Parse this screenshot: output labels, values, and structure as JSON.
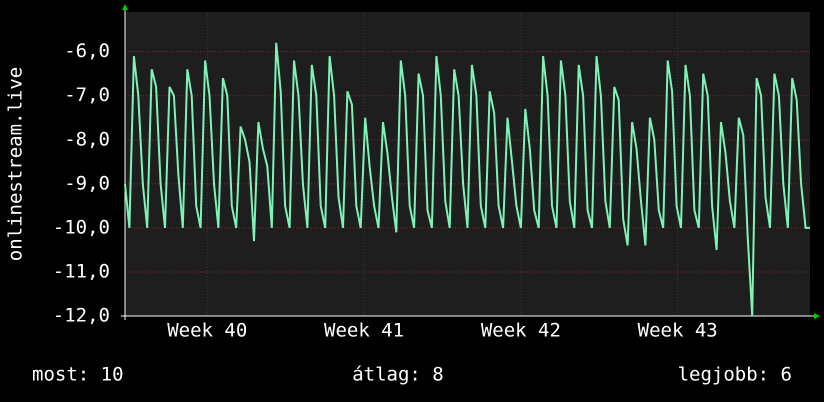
{
  "chart_data": {
    "type": "line",
    "y_label": "onlinestream.live",
    "x": [
      0,
      0.2,
      0.4,
      0.6,
      0.8,
      1,
      1.2,
      1.4,
      1.6,
      1.8,
      2,
      2.2,
      2.4,
      2.6,
      2.8,
      3,
      3.2,
      3.4,
      3.6,
      3.8,
      4,
      4.2,
      4.4,
      4.6,
      4.8,
      5,
      5.2,
      5.4,
      5.6,
      5.8,
      6,
      6.2,
      6.4,
      6.6,
      6.8,
      7,
      7.2,
      7.4,
      7.6,
      7.8,
      8,
      8.2,
      8.4,
      8.6,
      8.8,
      9,
      9.2,
      9.4,
      9.6,
      9.8,
      10,
      10.2,
      10.4,
      10.6,
      10.8,
      11,
      11.2,
      11.4,
      11.6,
      11.8,
      12,
      12.2,
      12.4,
      12.6,
      12.8,
      13,
      13.2,
      13.4,
      13.6,
      13.8,
      14,
      14.2,
      14.4,
      14.6,
      14.8,
      15,
      15.2,
      15.4,
      15.6,
      15.8,
      16,
      16.2,
      16.4,
      16.6,
      16.8,
      17,
      17.2,
      17.4,
      17.6,
      17.8,
      18,
      18.2,
      18.4,
      18.6,
      18.8,
      19,
      19.2,
      19.4,
      19.6,
      19.8,
      20,
      20.2,
      20.4,
      20.6,
      20.8,
      21,
      21.2,
      21.4,
      21.6,
      21.8,
      22,
      22.2,
      22.4,
      22.6,
      22.8,
      23,
      23.2,
      23.4,
      23.6,
      23.8,
      24,
      24.2,
      24.4,
      24.6,
      24.8,
      25,
      25.2,
      25.4,
      25.6,
      25.8,
      26,
      26.2,
      26.4,
      26.6,
      26.8,
      27,
      27.2,
      27.4,
      27.6,
      27.8,
      28,
      28.2,
      28.4,
      28.6,
      28.8,
      29,
      29.2,
      29.4,
      29.6,
      29.8,
      30,
      30.2,
      30.4,
      30.6,
      30.8
    ],
    "series": [
      {
        "name": "onlinestream.live",
        "color": "#7ff2b8",
        "values": [
          -9,
          -10,
          -6.1,
          -7,
          -9,
          -10,
          -6.4,
          -6.8,
          -9,
          -10,
          -6.8,
          -7,
          -8.8,
          -10,
          -6.4,
          -7,
          -9.5,
          -10,
          -6.2,
          -7,
          -9,
          -10,
          -6.6,
          -7,
          -9.5,
          -10,
          -7.7,
          -8,
          -8.5,
          -10.3,
          -7.6,
          -8.2,
          -8.6,
          -10,
          -5.8,
          -6.9,
          -9.5,
          -10,
          -6.2,
          -7,
          -9,
          -10,
          -6.3,
          -7,
          -9.5,
          -10,
          -6.1,
          -7,
          -9.3,
          -10,
          -6.9,
          -7.2,
          -9.5,
          -10,
          -7.5,
          -8.6,
          -9.5,
          -10,
          -7.6,
          -8.3,
          -9.3,
          -10.1,
          -6.2,
          -7,
          -9.5,
          -10,
          -6.5,
          -7,
          -9.6,
          -10,
          -6.1,
          -7,
          -9.4,
          -10,
          -6.4,
          -7,
          -9,
          -10,
          -6.3,
          -7,
          -9.5,
          -10,
          -6.9,
          -7.4,
          -9.5,
          -10,
          -7.5,
          -8.5,
          -9.5,
          -10,
          -7.3,
          -8.2,
          -9.6,
          -10,
          -6.1,
          -7,
          -9.5,
          -10,
          -6.2,
          -7,
          -9.4,
          -10,
          -6.3,
          -7,
          -9.6,
          -10,
          -6.1,
          -7,
          -9.4,
          -10,
          -6.8,
          -7.1,
          -9.8,
          -10.4,
          -7.6,
          -8.2,
          -9.4,
          -10.4,
          -7.5,
          -8,
          -9.6,
          -10,
          -6.2,
          -6.9,
          -9.5,
          -10,
          -6.3,
          -7,
          -9.6,
          -10,
          -6.5,
          -7,
          -9.5,
          -10.5,
          -7.6,
          -8.3,
          -9.4,
          -10,
          -7.5,
          -7.9,
          -10.2,
          -12,
          -6.6,
          -7,
          -9.3,
          -10,
          -6.5,
          -7,
          -9,
          -10,
          -6.6,
          -7.1,
          -9,
          -10,
          -10
        ]
      }
    ],
    "xlim": [
      0,
      30.8
    ],
    "xticks": [
      {
        "value": 3.7,
        "label": "Week 40"
      },
      {
        "value": 10.75,
        "label": "Week 41"
      },
      {
        "value": 17.8,
        "label": "Week 42"
      },
      {
        "value": 24.85,
        "label": "Week 43"
      }
    ],
    "ylim": [
      -12,
      -5.1
    ],
    "yticks": [
      {
        "value": -12,
        "label": "-12,0"
      },
      {
        "value": -11,
        "label": "-11,0"
      },
      {
        "value": -10,
        "label": "-10,0"
      },
      {
        "value": -9,
        "label": "-9,0"
      },
      {
        "value": -8,
        "label": "-8,0"
      },
      {
        "value": -7,
        "label": "-7,0"
      },
      {
        "value": -6,
        "label": "-6,0"
      }
    ],
    "grid": true,
    "footer": [
      "most: 10",
      "átlag: 8",
      "legjobb: 6"
    ]
  }
}
